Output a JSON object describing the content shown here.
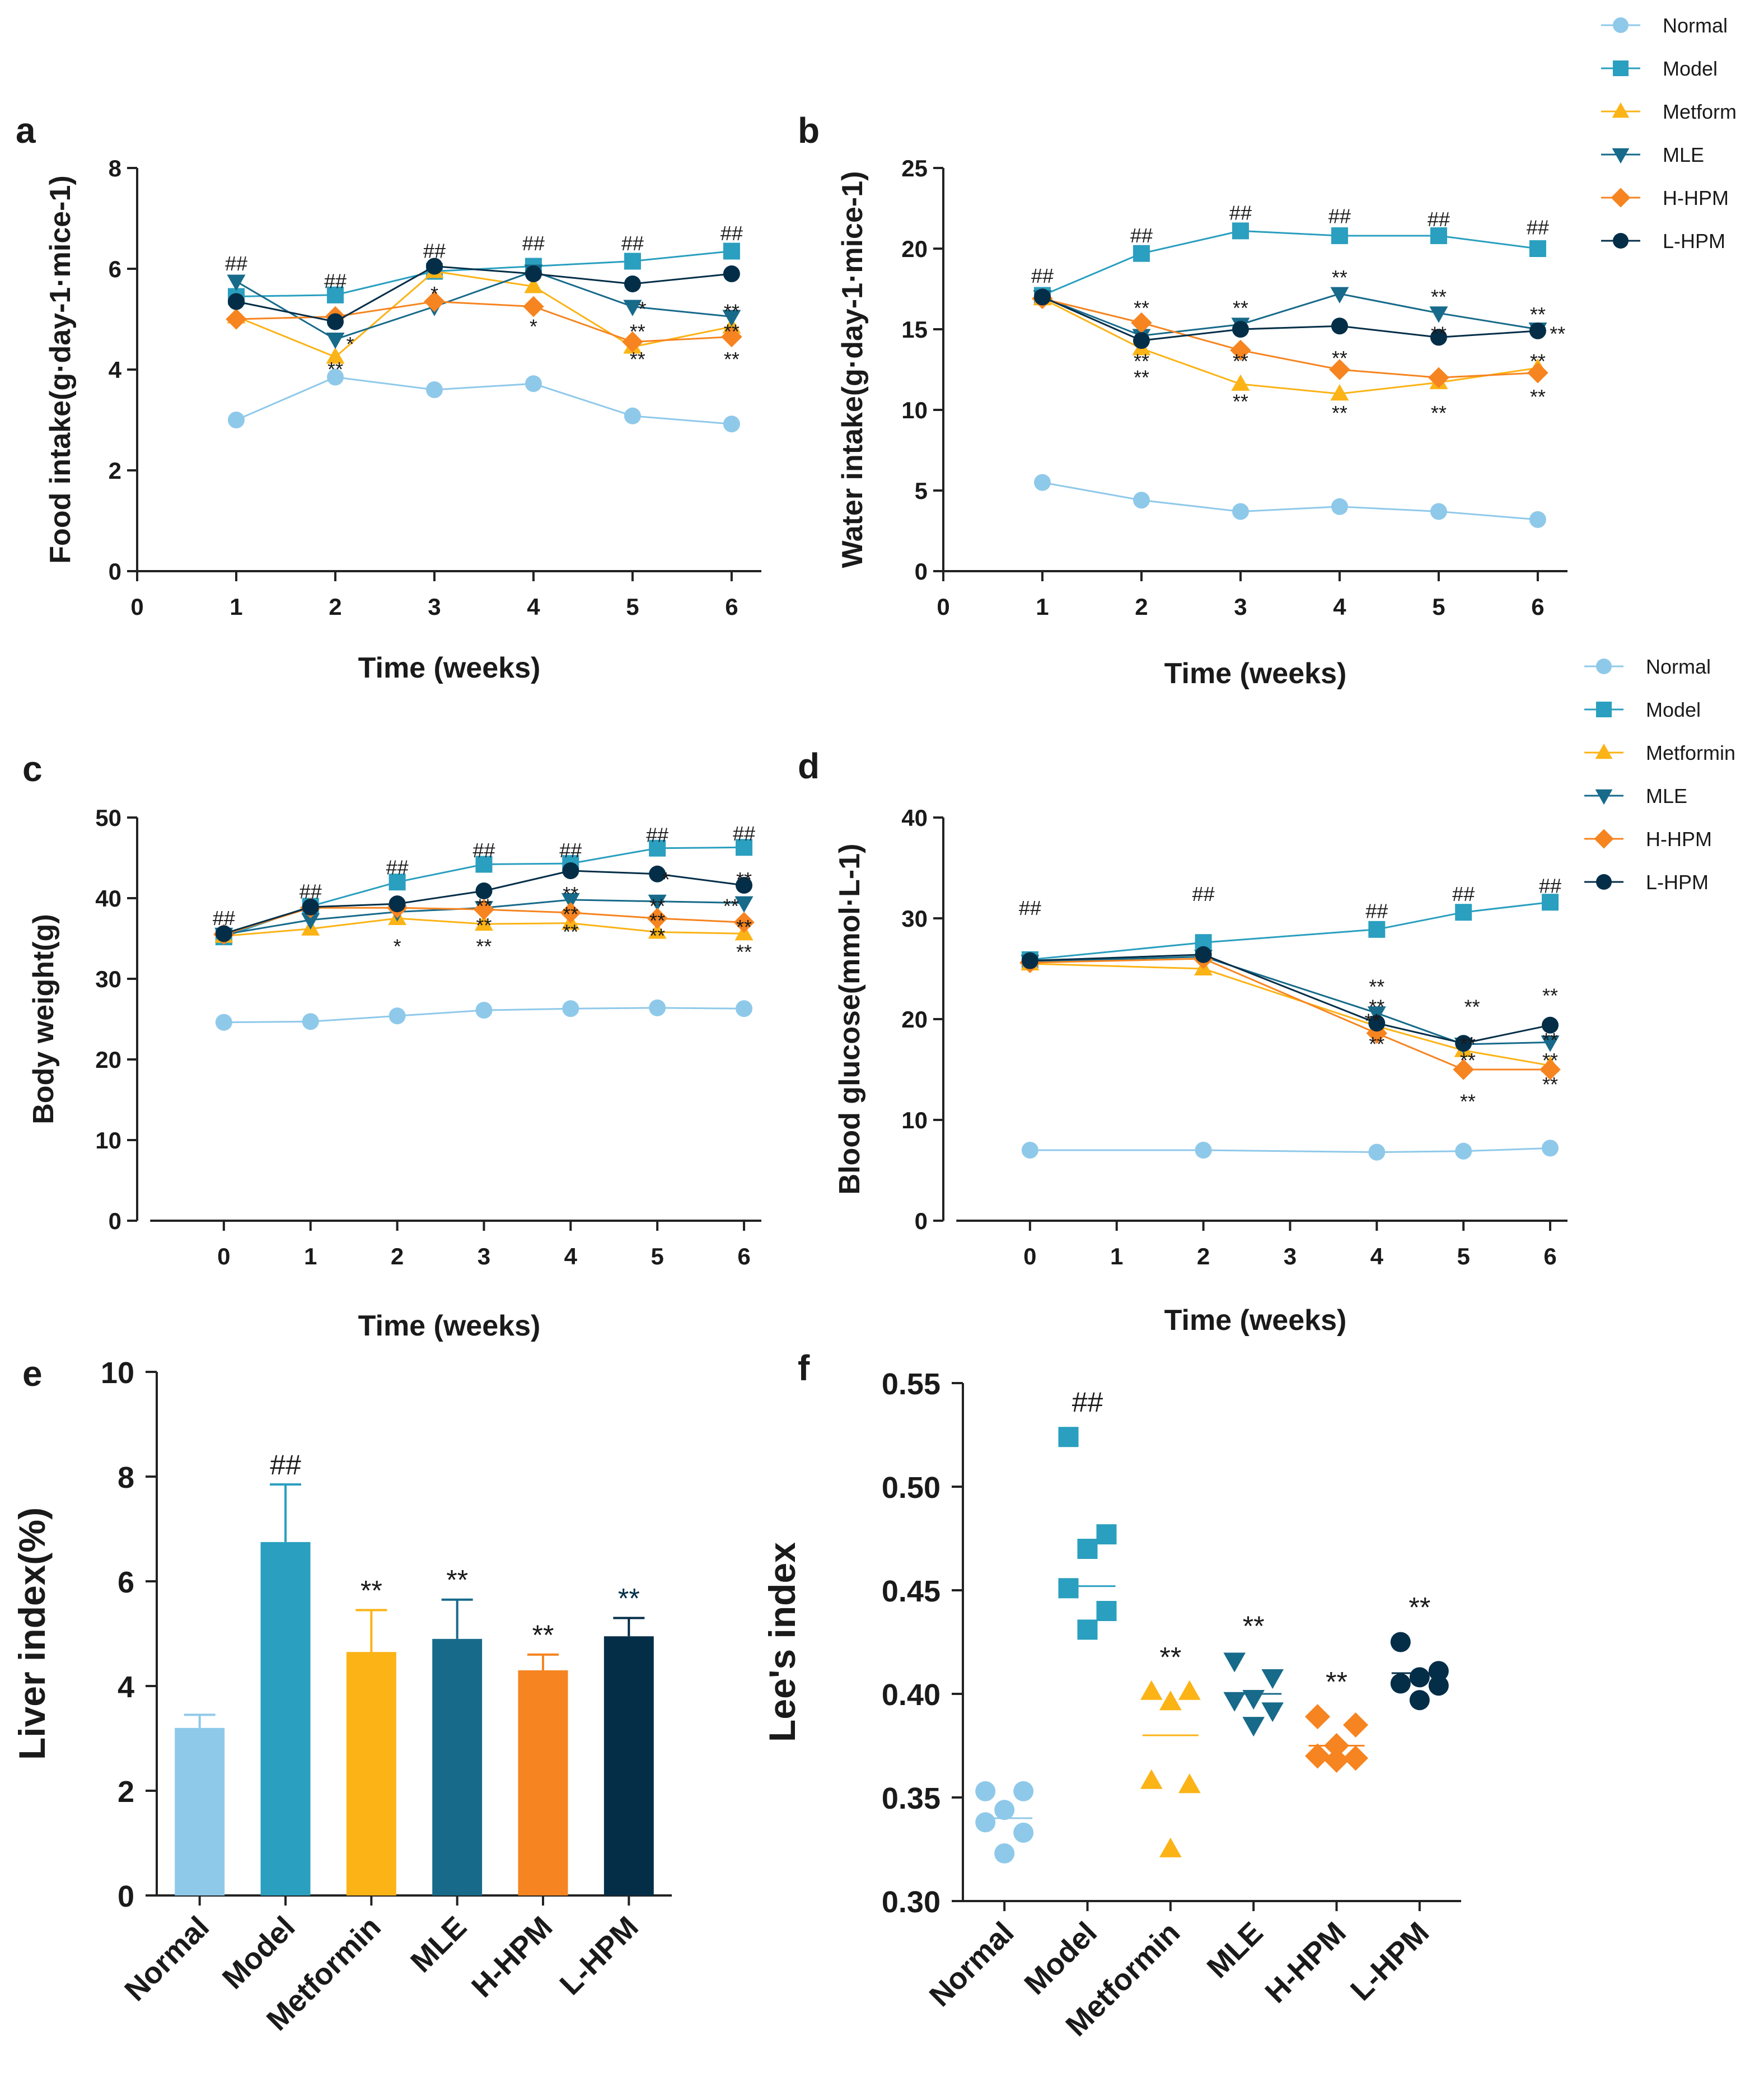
{
  "colors": {
    "normal": "#8fc9ea",
    "model": "#2a9fbf",
    "metformin": "#fbb316",
    "mle": "#176a8a",
    "hhpm": "#f68420",
    "lhpm": "#042e48"
  },
  "legends": {
    "top": [
      "Normal",
      "Model",
      "Metform",
      "MLE",
      "H-HPM",
      "L-HPM"
    ],
    "mid": [
      "Normal",
      "Model",
      "Metformin",
      "MLE",
      "H-HPM",
      "L-HPM"
    ]
  },
  "chart_data": [
    {
      "id": "a",
      "panel_label": "a",
      "type": "line",
      "xlabel": "Time (weeks)",
      "ylabel": "Food intake(g·day-1·mice-1)",
      "xlim": [
        0,
        6.3
      ],
      "ylim": [
        0,
        8
      ],
      "xticks": [
        "0",
        "1",
        "2",
        "3",
        "4",
        "5",
        "6"
      ],
      "yticks": [
        "0",
        "2",
        "4",
        "6",
        "8"
      ],
      "x": [
        1,
        2,
        3,
        4,
        5,
        6
      ],
      "series": [
        {
          "name": "Normal",
          "marker": "circle",
          "values": [
            3.0,
            3.85,
            3.6,
            3.72,
            3.08,
            2.92
          ]
        },
        {
          "name": "Model",
          "marker": "square",
          "values": [
            5.45,
            5.48,
            5.95,
            6.05,
            6.15,
            6.35
          ]
        },
        {
          "name": "Metform",
          "marker": "triangle",
          "values": [
            5.05,
            4.25,
            5.95,
            5.65,
            4.45,
            4.85
          ]
        },
        {
          "name": "MLE",
          "marker": "triangle-down",
          "values": [
            5.75,
            4.6,
            5.25,
            5.95,
            5.25,
            5.05
          ]
        },
        {
          "name": "H-HPM",
          "marker": "diamond",
          "values": [
            5.0,
            5.05,
            5.35,
            5.25,
            4.55,
            4.65
          ]
        },
        {
          "name": "L-HPM",
          "marker": "circle",
          "values": [
            5.35,
            4.95,
            6.05,
            5.9,
            5.7,
            5.9
          ]
        }
      ],
      "annotations": [
        {
          "x": 1,
          "y": 6.1,
          "text": "##"
        },
        {
          "x": 2,
          "y": 5.75,
          "text": "##"
        },
        {
          "x": 3,
          "y": 6.35,
          "text": "##"
        },
        {
          "x": 4,
          "y": 6.5,
          "text": "##"
        },
        {
          "x": 5,
          "y": 6.5,
          "text": "##"
        },
        {
          "x": 6,
          "y": 6.7,
          "text": "##"
        },
        {
          "x": 2.15,
          "y": 4.5,
          "text": "*"
        },
        {
          "x": 2,
          "y": 4.0,
          "text": "**"
        },
        {
          "x": 3,
          "y": 5.5,
          "text": "*"
        },
        {
          "x": 4,
          "y": 4.85,
          "text": "*"
        },
        {
          "x": 5.1,
          "y": 5.2,
          "text": "*"
        },
        {
          "x": 5.05,
          "y": 4.75,
          "text": "**"
        },
        {
          "x": 5.05,
          "y": 4.2,
          "text": "**"
        },
        {
          "x": 6,
          "y": 5.15,
          "text": "**"
        },
        {
          "x": 6,
          "y": 4.75,
          "text": "**"
        },
        {
          "x": 6,
          "y": 4.2,
          "text": "**"
        }
      ]
    },
    {
      "id": "b",
      "panel_label": "b",
      "type": "line",
      "xlabel": "Time (weeks)",
      "ylabel": "Water intake(g·day-1·mice-1)",
      "xlim": [
        0,
        6.3
      ],
      "ylim": [
        0,
        25
      ],
      "xticks": [
        "0",
        "1",
        "2",
        "3",
        "4",
        "5",
        "6"
      ],
      "yticks": [
        "0",
        "5",
        "10",
        "15",
        "20",
        "25"
      ],
      "x": [
        1,
        2,
        3,
        4,
        5,
        6
      ],
      "series": [
        {
          "name": "Normal",
          "marker": "circle",
          "values": [
            5.5,
            4.4,
            3.7,
            4.0,
            3.7,
            3.2
          ]
        },
        {
          "name": "Model",
          "marker": "square",
          "values": [
            17.1,
            19.7,
            21.1,
            20.8,
            20.8,
            20.0
          ]
        },
        {
          "name": "Metform",
          "marker": "triangle",
          "values": [
            16.9,
            13.8,
            11.6,
            11.0,
            11.7,
            12.6
          ]
        },
        {
          "name": "MLE",
          "marker": "triangle-down",
          "values": [
            17.0,
            14.6,
            15.3,
            17.2,
            16.0,
            15.0
          ]
        },
        {
          "name": "H-HPM",
          "marker": "diamond",
          "values": [
            16.9,
            15.4,
            13.7,
            12.5,
            12.0,
            12.3
          ]
        },
        {
          "name": "L-HPM",
          "marker": "circle",
          "values": [
            17.0,
            14.3,
            15.0,
            15.2,
            14.5,
            14.9
          ]
        }
      ],
      "annotations": [
        {
          "x": 1,
          "y": 18.3,
          "text": "##"
        },
        {
          "x": 2,
          "y": 20.8,
          "text": "##"
        },
        {
          "x": 3,
          "y": 22.2,
          "text": "##"
        },
        {
          "x": 4,
          "y": 22.0,
          "text": "##"
        },
        {
          "x": 5,
          "y": 21.8,
          "text": "##"
        },
        {
          "x": 6,
          "y": 21.3,
          "text": "##"
        },
        {
          "x": 2,
          "y": 16.3,
          "text": "**"
        },
        {
          "x": 2,
          "y": 13.0,
          "text": "**"
        },
        {
          "x": 2,
          "y": 12.0,
          "text": "**"
        },
        {
          "x": 3,
          "y": 16.3,
          "text": "**"
        },
        {
          "x": 3,
          "y": 13.0,
          "text": "**"
        },
        {
          "x": 3,
          "y": 10.5,
          "text": "**"
        },
        {
          "x": 4,
          "y": 18.2,
          "text": "**"
        },
        {
          "x": 4,
          "y": 13.2,
          "text": "**"
        },
        {
          "x": 4,
          "y": 9.8,
          "text": "**"
        },
        {
          "x": 5,
          "y": 17.0,
          "text": "**"
        },
        {
          "x": 5,
          "y": 14.7,
          "text": "**"
        },
        {
          "x": 5,
          "y": 9.8,
          "text": "**"
        },
        {
          "x": 6,
          "y": 15.9,
          "text": "**"
        },
        {
          "x": 6,
          "y": 13.0,
          "text": "**"
        },
        {
          "x": 6,
          "y": 10.8,
          "text": "**"
        },
        {
          "x": 6.2,
          "y": 14.7,
          "text": "**"
        }
      ]
    },
    {
      "id": "c",
      "panel_label": "c",
      "type": "line",
      "xlabel": "Time (weeks)",
      "ylabel": "Body weight(g)",
      "xlim": [
        -1,
        6.2
      ],
      "ylim": [
        0,
        50
      ],
      "xticks": [
        "0",
        "1",
        "2",
        "3",
        "4",
        "5",
        "6"
      ],
      "yticks": [
        "0",
        "10",
        "20",
        "30",
        "40",
        "50"
      ],
      "x": [
        0,
        1,
        2,
        3,
        4,
        5,
        6
      ],
      "series": [
        {
          "name": "Normal",
          "marker": "circle",
          "values": [
            24.6,
            24.7,
            25.4,
            26.1,
            26.3,
            26.4,
            26.3
          ]
        },
        {
          "name": "Model",
          "marker": "square",
          "values": [
            35.2,
            39.0,
            42.0,
            44.2,
            44.3,
            46.2,
            46.3
          ]
        },
        {
          "name": "Metformin",
          "marker": "triangle",
          "values": [
            35.3,
            36.2,
            37.5,
            36.8,
            36.9,
            35.8,
            35.6
          ]
        },
        {
          "name": "MLE",
          "marker": "triangle-down",
          "values": [
            35.5,
            37.3,
            38.3,
            38.8,
            39.8,
            39.6,
            39.4
          ]
        },
        {
          "name": "H-HPM",
          "marker": "diamond",
          "values": [
            35.5,
            38.8,
            38.8,
            38.6,
            38.2,
            37.5,
            37.0
          ]
        },
        {
          "name": "L-HPM",
          "marker": "circle",
          "values": [
            35.6,
            38.9,
            39.3,
            40.9,
            43.4,
            43.0,
            41.6
          ]
        }
      ],
      "annotations": [
        {
          "x": 0,
          "y": 37.5,
          "text": "##"
        },
        {
          "x": 1,
          "y": 40.8,
          "text": "##"
        },
        {
          "x": 2,
          "y": 43.8,
          "text": "##"
        },
        {
          "x": 3,
          "y": 45.9,
          "text": "##"
        },
        {
          "x": 4,
          "y": 45.9,
          "text": "##"
        },
        {
          "x": 5,
          "y": 47.8,
          "text": "##"
        },
        {
          "x": 6,
          "y": 48.0,
          "text": "##"
        },
        {
          "x": 2,
          "y": 34.0,
          "text": "*"
        },
        {
          "x": 3,
          "y": 39.0,
          "text": "**"
        },
        {
          "x": 3,
          "y": 36.6,
          "text": "**"
        },
        {
          "x": 3,
          "y": 34.0,
          "text": "**"
        },
        {
          "x": 4,
          "y": 40.5,
          "text": "**"
        },
        {
          "x": 4,
          "y": 38.0,
          "text": "**"
        },
        {
          "x": 4,
          "y": 35.8,
          "text": "**"
        },
        {
          "x": 5,
          "y": 39.0,
          "text": "**"
        },
        {
          "x": 5,
          "y": 37.2,
          "text": "**"
        },
        {
          "x": 5,
          "y": 35.3,
          "text": "**"
        },
        {
          "x": 5.1,
          "y": 42.3,
          "text": "*"
        },
        {
          "x": 6,
          "y": 42.3,
          "text": "**"
        },
        {
          "x": 5.85,
          "y": 39.0,
          "text": "**"
        },
        {
          "x": 6,
          "y": 36.4,
          "text": "**"
        },
        {
          "x": 6,
          "y": 33.3,
          "text": "**"
        }
      ]
    },
    {
      "id": "d",
      "panel_label": "d",
      "type": "line",
      "xlabel": "Time (weeks)",
      "ylabel": "Blood glucose(mmol·L-1)",
      "xlim": [
        -1,
        6.2
      ],
      "ylim": [
        0,
        40
      ],
      "xticks": [
        "0",
        "1",
        "2",
        "3",
        "4",
        "5",
        "6"
      ],
      "yticks": [
        "0",
        "10",
        "20",
        "30",
        "40"
      ],
      "x": [
        0,
        2,
        4,
        5,
        6
      ],
      "series": [
        {
          "name": "Normal",
          "marker": "circle",
          "values": [
            7.0,
            7.0,
            6.8,
            6.9,
            7.2
          ]
        },
        {
          "name": "Model",
          "marker": "square",
          "values": [
            25.9,
            27.6,
            28.9,
            30.6,
            31.6
          ]
        },
        {
          "name": "Metformin",
          "marker": "triangle",
          "values": [
            25.5,
            25.0,
            19.3,
            16.9,
            15.4
          ]
        },
        {
          "name": "MLE",
          "marker": "triangle-down",
          "values": [
            25.7,
            26.2,
            20.6,
            17.5,
            17.7
          ]
        },
        {
          "name": "H-HPM",
          "marker": "diamond",
          "values": [
            25.6,
            26.0,
            18.6,
            15.0,
            15.0
          ]
        },
        {
          "name": "L-HPM",
          "marker": "circle",
          "values": [
            25.8,
            26.4,
            19.6,
            17.6,
            19.4
          ]
        }
      ],
      "annotations": [
        {
          "x": 0,
          "y": 31.0,
          "text": "##"
        },
        {
          "x": 2,
          "y": 32.4,
          "text": "##"
        },
        {
          "x": 4,
          "y": 30.7,
          "text": "##"
        },
        {
          "x": 5,
          "y": 32.4,
          "text": "##"
        },
        {
          "x": 6,
          "y": 33.2,
          "text": "##"
        },
        {
          "x": 4,
          "y": 23.2,
          "text": "**"
        },
        {
          "x": 4,
          "y": 21.2,
          "text": "**"
        },
        {
          "x": 3.95,
          "y": 19.8,
          "text": "**"
        },
        {
          "x": 4,
          "y": 17.5,
          "text": "**"
        },
        {
          "x": 5.1,
          "y": 21.2,
          "text": "**"
        },
        {
          "x": 5.05,
          "y": 17.5,
          "text": "**"
        },
        {
          "x": 5.05,
          "y": 15.9,
          "text": "**"
        },
        {
          "x": 5.05,
          "y": 11.8,
          "text": "**"
        },
        {
          "x": 6,
          "y": 22.3,
          "text": "**"
        },
        {
          "x": 6,
          "y": 17.9,
          "text": "**"
        },
        {
          "x": 6,
          "y": 15.9,
          "text": "**"
        },
        {
          "x": 6,
          "y": 13.5,
          "text": "**"
        }
      ]
    },
    {
      "id": "e",
      "panel_label": "e",
      "type": "bar",
      "xlabel": "",
      "ylabel": "Liver index(%)",
      "ylim": [
        0,
        10
      ],
      "yticks": [
        "0",
        "2",
        "4",
        "6",
        "8",
        "10"
      ],
      "categories": [
        "Normal",
        "Model",
        "Metformin",
        "MLE",
        "H-HPM",
        "L-HPM"
      ],
      "values": [
        3.2,
        6.75,
        4.65,
        4.9,
        4.3,
        4.95
      ],
      "errors": [
        0.25,
        1.1,
        0.8,
        0.75,
        0.3,
        0.35
      ],
      "significance": [
        "",
        "##",
        "**",
        "**",
        "**",
        "**"
      ]
    },
    {
      "id": "f",
      "panel_label": "f",
      "type": "scatter",
      "xlabel": "",
      "ylabel": "Lee's index",
      "ylim": [
        0.3,
        0.55
      ],
      "yticks": [
        "0.30",
        "0.35",
        "0.40",
        "0.45",
        "0.50",
        "0.55"
      ],
      "categories": [
        "Normal",
        "Model",
        "Metformin",
        "MLE",
        "H-HPM",
        "L-HPM"
      ],
      "means": [
        0.34,
        0.452,
        0.38,
        0.4,
        0.375,
        0.41
      ],
      "groups": [
        {
          "name": "Normal",
          "marker": "circle",
          "points": [
            0.353,
            0.353,
            0.344,
            0.338,
            0.333,
            0.323
          ]
        },
        {
          "name": "Model",
          "marker": "square",
          "points": [
            0.524,
            0.477,
            0.47,
            0.451,
            0.44,
            0.431
          ]
        },
        {
          "name": "Metformin",
          "marker": "triangle",
          "points": [
            0.401,
            0.401,
            0.396,
            0.358,
            0.356,
            0.325
          ]
        },
        {
          "name": "MLE",
          "marker": "triangle-down",
          "points": [
            0.416,
            0.408,
            0.398,
            0.397,
            0.392,
            0.385
          ]
        },
        {
          "name": "H-HPM",
          "marker": "diamond",
          "points": [
            0.389,
            0.385,
            0.375,
            0.37,
            0.369,
            0.368
          ]
        },
        {
          "name": "L-HPM",
          "marker": "circle",
          "points": [
            0.425,
            0.411,
            0.408,
            0.405,
            0.404,
            0.397
          ]
        }
      ],
      "significance": [
        "",
        "##",
        "**",
        "**",
        "**",
        "**"
      ]
    }
  ]
}
